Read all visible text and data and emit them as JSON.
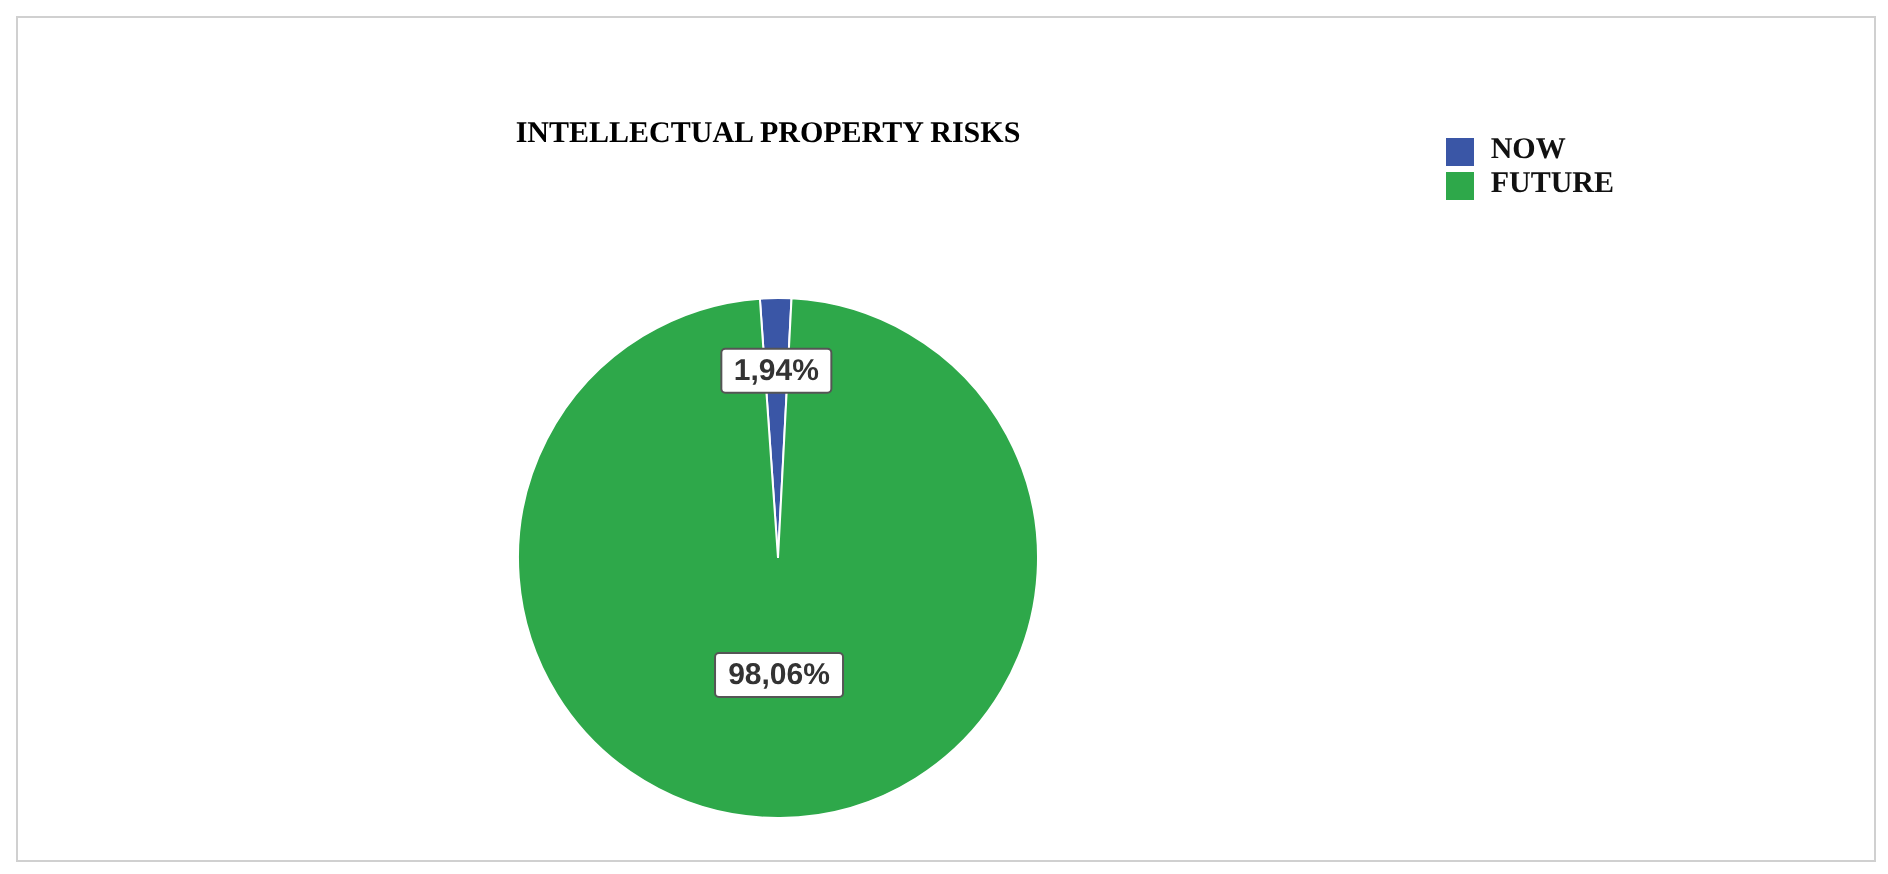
{
  "chart_data": {
    "type": "pie",
    "title": "INTELLECTUAL PROPERTY RISKS",
    "categories": [
      "NOW",
      "FUTURE"
    ],
    "values": [
      1.94,
      98.06
    ],
    "colors": [
      "#3a56a6",
      "#2ea84a"
    ],
    "value_labels": [
      "1,94%",
      "98,06%"
    ],
    "legend": "top right"
  }
}
